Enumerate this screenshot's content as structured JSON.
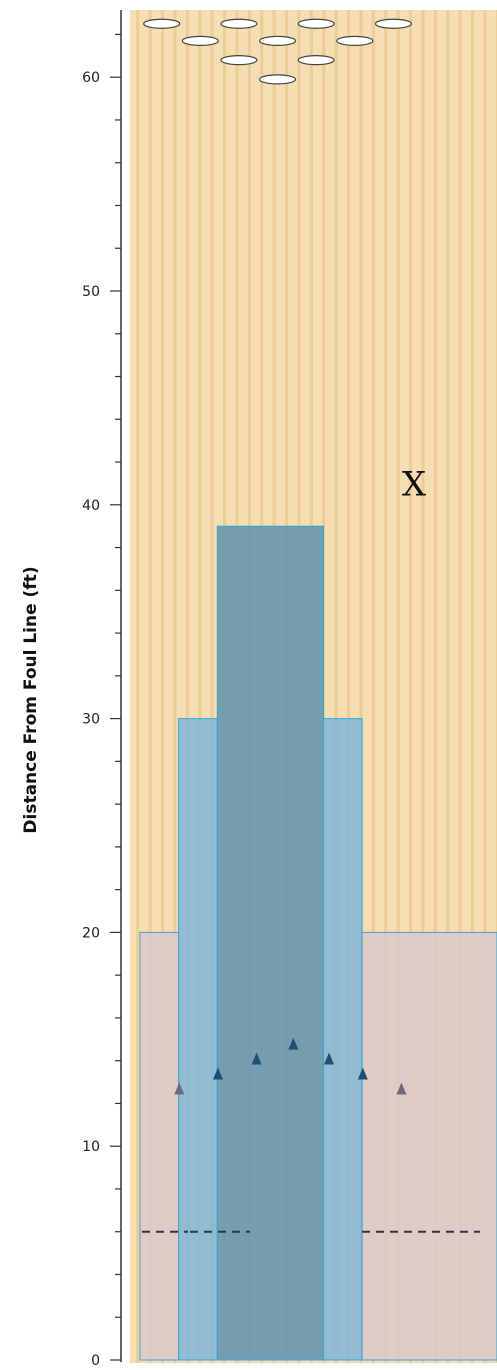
{
  "chart_data": {
    "type": "diagram",
    "ylabel": "Distance From Foul Line (ft)",
    "ylim": [
      0,
      63
    ],
    "y_ticks": [
      0,
      10,
      20,
      30,
      40,
      50,
      60
    ],
    "x_units": "boards",
    "x_range": [
      1,
      39
    ],
    "oil_zones": [
      {
        "from_board": 1,
        "to_board": 5,
        "length_ft": 20,
        "color": "#dcc9c9"
      },
      {
        "from_board": 5,
        "to_board": 9,
        "length_ft": 30,
        "color": "#7fb6d6"
      },
      {
        "from_board": 9,
        "to_board": 20,
        "length_ft": 39,
        "color": "#5f93ae"
      },
      {
        "from_board": 20,
        "to_board": 24,
        "length_ft": 30,
        "color": "#7fb6d6"
      },
      {
        "from_board": 24,
        "to_board": 28,
        "length_ft": 20,
        "color": "#dcc9c9"
      }
    ],
    "arrows": [
      {
        "board": 3,
        "ft": 12.7
      },
      {
        "board": 7,
        "ft": 13.4
      },
      {
        "board": 11,
        "ft": 14.1
      },
      {
        "board": 14.8,
        "ft": 14.8
      },
      {
        "board": 18.5,
        "ft": 14.1
      },
      {
        "board": 22,
        "ft": 13.4
      },
      {
        "board": 26,
        "ft": 12.7
      }
    ],
    "dots_ft": 6,
    "target": {
      "label": "X",
      "board": 22,
      "ft": 41
    },
    "pins": [
      {
        "board": 2,
        "ft": 62.5
      },
      {
        "board": 10,
        "ft": 62.5
      },
      {
        "board": 18,
        "ft": 62.5
      },
      {
        "board": 26,
        "ft": 62.5
      },
      {
        "board": 6,
        "ft": 61.7
      },
      {
        "board": 14,
        "ft": 61.7
      },
      {
        "board": 22,
        "ft": 61.7
      },
      {
        "board": 10,
        "ft": 60.8
      },
      {
        "board": 18,
        "ft": 60.8
      },
      {
        "board": 14,
        "ft": 59.9
      }
    ],
    "colors": {
      "lane_light": "#f5deb3",
      "lane_dark": "#e8c98f",
      "arrow": "#1f4e79",
      "arrow_light": "#6b6b80",
      "zone_border": "#3aa7d8"
    }
  }
}
